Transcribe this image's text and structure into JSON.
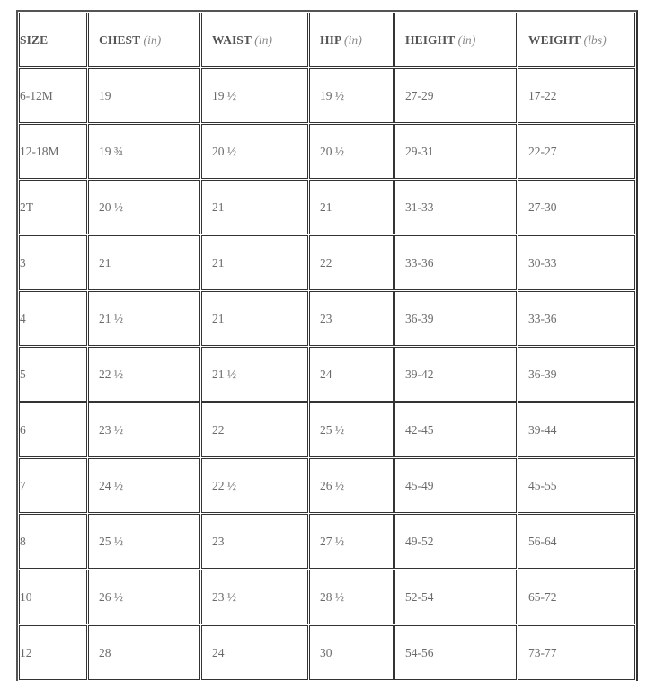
{
  "table": {
    "headers": [
      {
        "label": "SIZE",
        "unit": ""
      },
      {
        "label": "CHEST",
        "unit": "(in)"
      },
      {
        "label": "WAIST",
        "unit": "(in)"
      },
      {
        "label": "HIP",
        "unit": "(in)"
      },
      {
        "label": "HEIGHT",
        "unit": "(in)"
      },
      {
        "label": "WEIGHT",
        "unit": "(lbs)"
      }
    ],
    "rows": [
      [
        "6-12M",
        "19",
        "19 ½",
        "19 ½",
        "27-29",
        "17-22"
      ],
      [
        "12-18M",
        "19 ¾",
        "20 ½",
        "20 ½",
        "29-31",
        "22-27"
      ],
      [
        "2T",
        "20 ½",
        "21",
        "21",
        "31-33",
        "27-30"
      ],
      [
        "3",
        "21",
        "21",
        "22",
        "33-36",
        "30-33"
      ],
      [
        "4",
        "21 ½",
        "21",
        "23",
        "36-39",
        "33-36"
      ],
      [
        "5",
        "22 ½",
        "21 ½",
        "24",
        "39-42",
        "36-39"
      ],
      [
        "6",
        "23 ½",
        "22",
        "25 ½",
        "42-45",
        "39-44"
      ],
      [
        "7",
        "24 ½",
        "22 ½",
        "26 ½",
        "45-49",
        "45-55"
      ],
      [
        "8",
        "25 ½",
        "23",
        "27 ½",
        "49-52",
        "56-64"
      ],
      [
        "10",
        "26 ½",
        "23 ½",
        "28 ½",
        "52-54",
        "65-72"
      ],
      [
        "12",
        "28",
        "24",
        "30",
        "54-56",
        "73-77"
      ]
    ]
  }
}
